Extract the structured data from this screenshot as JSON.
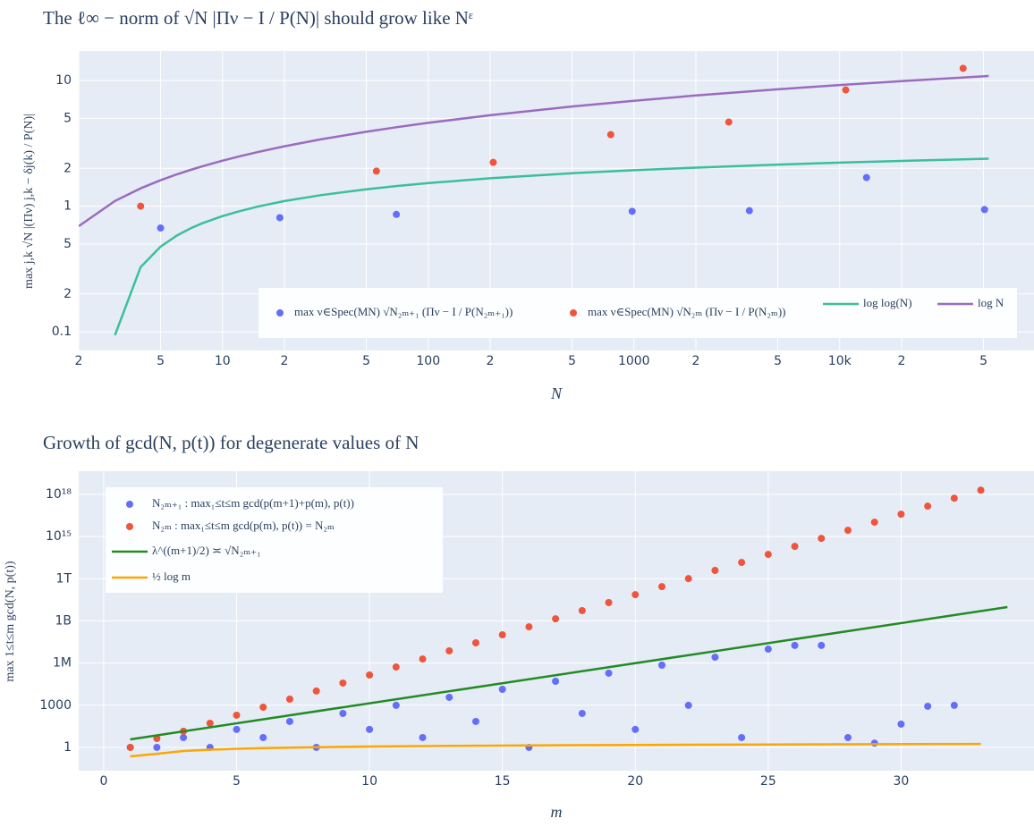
{
  "chart_data": [
    {
      "type": "scatter-line",
      "title": "The ℓ∞ − norm of √N |Πν − I / P(N)| should grow like Nᵋ",
      "x_label": "N",
      "y_label": "max j,k √N |(Πν) j,k − δj(k) / P(N)|",
      "xlog": true,
      "ylog": true,
      "grid": true,
      "legend": "bottom",
      "xlim": [
        2,
        88000
      ],
      "ylim": [
        0.071,
        17.2
      ],
      "xticks": [
        {
          "value": 2,
          "label": "2"
        },
        {
          "value": 5,
          "label": "5"
        },
        10,
        {
          "value": 20,
          "label": "2"
        },
        {
          "value": 50,
          "label": "5"
        },
        100,
        {
          "value": 200,
          "label": "2"
        },
        {
          "value": 500,
          "label": "5"
        },
        1000,
        {
          "value": 2000,
          "label": "2"
        },
        {
          "value": 5000,
          "label": "5"
        },
        {
          "value": 10000,
          "label": "10k"
        },
        {
          "value": 20000,
          "label": "2"
        },
        {
          "value": 50000,
          "label": "5"
        }
      ],
      "yticks": [
        0.1,
        {
          "value": 0.2,
          "label": "2"
        },
        {
          "value": 0.5,
          "label": "5"
        },
        1,
        2,
        5,
        10
      ],
      "series": [
        {
          "name": "max ν∈Spec(MN) √N₂ₘ₊₁ (Πν − I / P(N₂ₘ₊₁))",
          "color": "#636efa",
          "mode": "markers",
          "x": [
            5,
            19,
            70,
            980,
            3640,
            13500,
            50600
          ],
          "values": [
            0.67,
            0.81,
            0.86,
            0.91,
            0.92,
            1.69,
            0.94
          ]
        },
        {
          "name": "max ν∈Spec(MN) √N₂ₘ (Πν − I / P(N₂ₘ))",
          "color": "#ef553b",
          "mode": "markers",
          "x": [
            4,
            56,
            207,
            771,
            2890,
            10700,
            39800
          ],
          "values": [
            1.0,
            1.9,
            2.23,
            3.71,
            4.67,
            8.42,
            12.5
          ]
        },
        {
          "name": "log log(N)",
          "color": "#3bbf9b",
          "mode": "lines",
          "x": [
            2,
            3,
            4,
            5,
            6,
            7,
            8,
            10,
            12,
            15,
            20,
            30,
            50,
            70,
            100,
            200,
            500,
            1000,
            2000,
            5000,
            10000,
            20000,
            53000
          ],
          "values": [
            null,
            0.094,
            0.327,
            0.476,
            0.583,
            0.666,
            0.732,
            0.834,
            0.91,
            0.996,
            1.097,
            1.224,
            1.364,
            1.446,
            1.527,
            1.668,
            1.827,
            1.933,
            2.028,
            2.142,
            2.22,
            2.293,
            2.387
          ]
        },
        {
          "name": "log N",
          "color": "#9b6bbf",
          "mode": "lines",
          "x": [
            2,
            3,
            4,
            5,
            6,
            7,
            8,
            10,
            12,
            15,
            20,
            30,
            50,
            70,
            100,
            200,
            500,
            1000,
            2000,
            5000,
            10000,
            20000,
            53000
          ],
          "values": [
            0.693,
            1.099,
            1.386,
            1.609,
            1.792,
            1.946,
            2.079,
            2.303,
            2.485,
            2.708,
            2.996,
            3.401,
            3.912,
            4.248,
            4.605,
            5.298,
            6.215,
            6.908,
            7.601,
            8.517,
            9.21,
            9.903,
            10.878
          ]
        }
      ]
    },
    {
      "type": "scatter-line",
      "title": "Growth of gcd(N, p(t)) for degenerate values of N",
      "x_label": "m",
      "y_label": "max 1≤t≤m gcd(N, p(t))",
      "xlog": false,
      "ylog": true,
      "grid": true,
      "legend": "top-left",
      "xlim": [
        -0.94,
        35
      ],
      "ylim": [
        0.022,
        4.5e+19
      ],
      "xticks": [
        0,
        5,
        10,
        15,
        20,
        25,
        30
      ],
      "yticks": [
        1,
        1000,
        {
          "value": 1000000,
          "label": "1M"
        },
        {
          "value": 1000000000,
          "label": "1B"
        },
        {
          "value": 1000000000000,
          "label": "1T"
        },
        {
          "value": 1000000000000000.0,
          "label": "10¹⁵"
        },
        {
          "value": 1e+18,
          "label": "10¹⁸"
        }
      ],
      "series": [
        {
          "name": "N₂ₘ₊₁ : max₁≤t≤m gcd(p(m+1)+p(m), p(t))",
          "color": "#636efa",
          "mode": "markers",
          "x": [
            1,
            2,
            3,
            4,
            5,
            6,
            7,
            8,
            9,
            10,
            11,
            12,
            13,
            14,
            15,
            16,
            17,
            18,
            19,
            20,
            21,
            22,
            23,
            24,
            25,
            26,
            27,
            28,
            29,
            30,
            31,
            32
          ],
          "values": [
            1,
            1,
            5,
            1,
            19,
            5,
            70,
            1,
            260,
            19,
            980,
            5,
            3640,
            70,
            13500,
            1,
            50600,
            260,
            190000,
            19,
            706000,
            980,
            2600000,
            5,
            9800000,
            18000000,
            18000000,
            5,
            2,
            45,
            840,
            980
          ]
        },
        {
          "name": "N₂ₘ : max₁≤t≤m gcd(p(m), p(t)) = N₂ₘ",
          "color": "#ef553b",
          "mode": "markers",
          "x": [
            1,
            2,
            3,
            4,
            5,
            6,
            7,
            8,
            9,
            10,
            11,
            12,
            13,
            14,
            15,
            16,
            17,
            18,
            19,
            20,
            21,
            22,
            23,
            24,
            25,
            26,
            27,
            28,
            29,
            30,
            31,
            32,
            33
          ],
          "values": [
            1,
            4.3,
            14,
            52,
            195,
            724,
            2700,
            10200,
            38000,
            141000,
            525000,
            1950000,
            7400000,
            27500000,
            102000000,
            380000000,
            1410000000,
            5400000000,
            20000000000,
            74000000000,
            275000000000,
            1020000000000,
            3900000000000,
            14400000000000,
            54000000000000,
            200000000000000.0,
            740000000000000.0,
            2800000000000000.0,
            1.05e+16,
            3.9e+16,
            1.45e+17,
            5.4e+17,
            2e+18
          ]
        },
        {
          "name": "λ^((m+1)/2) ≍ √N₂ₘ₊₁",
          "color": "#228b22",
          "mode": "lines",
          "x": [
            1,
            34
          ],
          "values": [
            3.7,
            9600000000
          ]
        },
        {
          "name": "½ log m",
          "color": "#ffa500",
          "mode": "lines",
          "x": [
            1,
            2,
            3,
            4,
            5,
            6,
            8,
            10,
            13,
            16,
            20,
            25,
            33
          ],
          "values": [
            0.23,
            0.35,
            0.55,
            0.69,
            0.8,
            0.9,
            1.04,
            1.15,
            1.28,
            1.39,
            1.5,
            1.61,
            1.75
          ]
        }
      ]
    }
  ]
}
